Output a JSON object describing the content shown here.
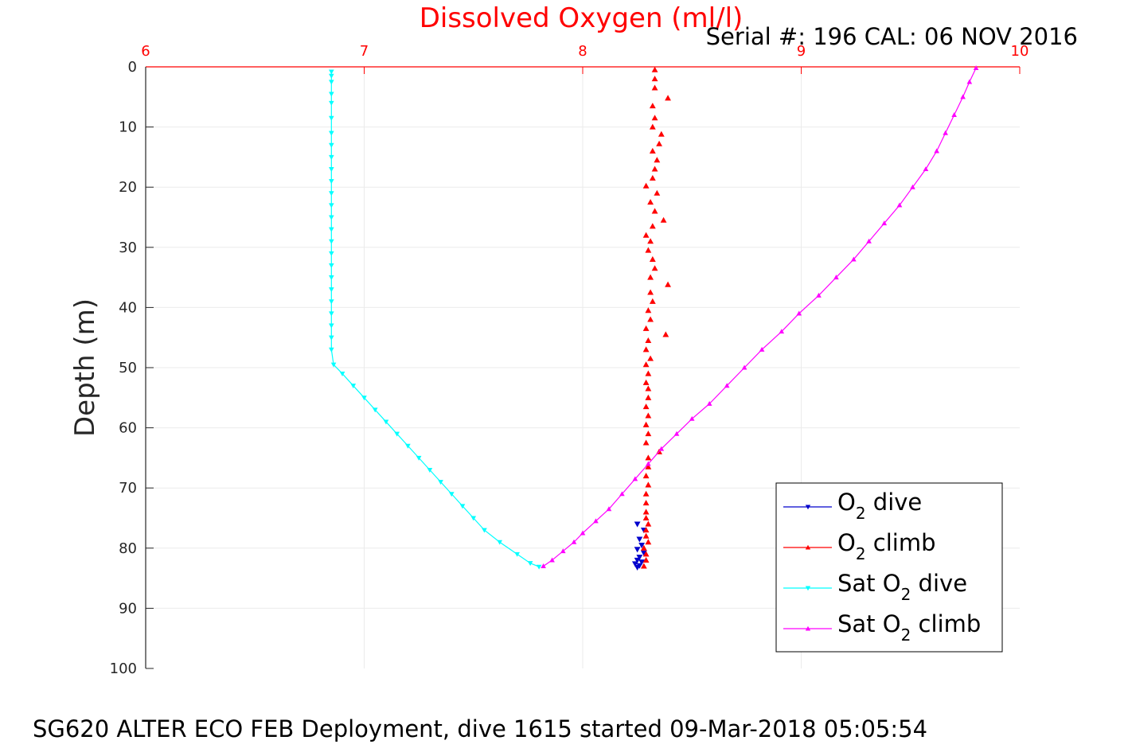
{
  "chart_data": {
    "type": "scatter",
    "title": "Dissolved Oxygen (ml/l)",
    "subtitle": "Serial #: 196  CAL: 06 NOV 2016",
    "footer": "SG620 ALTER ECO FEB Deployment, dive 1615 started 09-Mar-2018 05:05:54",
    "ylabel": "Depth (m)",
    "xlim": [
      6,
      10
    ],
    "ylim": [
      0,
      100
    ],
    "y_reversed": true,
    "x_axis_location": "top",
    "x_ticks": [
      "6",
      "7",
      "8",
      "9",
      "10"
    ],
    "y_ticks": [
      "0",
      "10",
      "20",
      "30",
      "40",
      "50",
      "60",
      "70",
      "80",
      "90",
      "100"
    ],
    "grid": true,
    "legend_position": "bottom-right",
    "colors": {
      "o2_dive": "#0000cc",
      "o2_climb": "#ff0000",
      "sat_dive": "#00ffff",
      "sat_climb": "#ff00ff",
      "axis_x": "#ff0000",
      "grid": "#ebebeb"
    },
    "series": [
      {
        "key": "o2_dive",
        "legend": {
          "pre": "O",
          "sub": "2",
          "post": " dive"
        },
        "marker": "triangle-down",
        "color": "#0000cc",
        "points": [
          [
            8.25,
            76.0
          ],
          [
            8.28,
            77.0
          ],
          [
            8.26,
            78.5
          ],
          [
            8.27,
            79.5
          ],
          [
            8.25,
            80.2
          ],
          [
            8.28,
            80.8
          ],
          [
            8.26,
            81.5
          ],
          [
            8.25,
            82.0
          ],
          [
            8.27,
            82.3
          ],
          [
            8.24,
            82.6
          ],
          [
            8.26,
            82.9
          ],
          [
            8.25,
            83.2
          ]
        ]
      },
      {
        "key": "o2_climb",
        "legend": {
          "pre": "O",
          "sub": "2",
          "post": " climb"
        },
        "marker": "triangle-up",
        "color": "#ff0000",
        "points": [
          [
            8.28,
            83.0
          ],
          [
            8.29,
            82.0
          ],
          [
            8.29,
            81.0
          ],
          [
            8.28,
            80.0
          ],
          [
            8.3,
            79.0
          ],
          [
            8.29,
            78.0
          ],
          [
            8.29,
            77.0
          ],
          [
            8.3,
            76.0
          ],
          [
            8.29,
            75.0
          ],
          [
            8.29,
            74.0
          ],
          [
            8.29,
            72.5
          ],
          [
            8.29,
            71.0
          ],
          [
            8.3,
            69.5
          ],
          [
            8.29,
            68.0
          ],
          [
            8.3,
            66.5
          ],
          [
            8.3,
            65.0
          ],
          [
            8.35,
            64.0
          ],
          [
            8.29,
            62.5
          ],
          [
            8.3,
            61.0
          ],
          [
            8.29,
            59.5
          ],
          [
            8.3,
            58.0
          ],
          [
            8.29,
            56.5
          ],
          [
            8.3,
            55.0
          ],
          [
            8.3,
            53.5
          ],
          [
            8.29,
            52.5
          ],
          [
            8.3,
            51.0
          ],
          [
            8.29,
            49.5
          ],
          [
            8.31,
            48.5
          ],
          [
            8.29,
            47.0
          ],
          [
            8.3,
            45.5
          ],
          [
            8.38,
            44.5
          ],
          [
            8.29,
            43.5
          ],
          [
            8.31,
            42.0
          ],
          [
            8.3,
            40.5
          ],
          [
            8.32,
            39.0
          ],
          [
            8.31,
            37.5
          ],
          [
            8.39,
            36.2
          ],
          [
            8.31,
            35.0
          ],
          [
            8.33,
            33.5
          ],
          [
            8.32,
            32.0
          ],
          [
            8.3,
            30.5
          ],
          [
            8.31,
            29.0
          ],
          [
            8.29,
            28.0
          ],
          [
            8.32,
            26.5
          ],
          [
            8.37,
            25.5
          ],
          [
            8.33,
            24.0
          ],
          [
            8.31,
            22.5
          ],
          [
            8.34,
            21.0
          ],
          [
            8.29,
            19.8
          ],
          [
            8.32,
            18.5
          ],
          [
            8.33,
            17.0
          ],
          [
            8.34,
            15.5
          ],
          [
            8.32,
            14.0
          ],
          [
            8.35,
            12.8
          ],
          [
            8.36,
            11.2
          ],
          [
            8.32,
            10.0
          ],
          [
            8.33,
            8.5
          ],
          [
            8.32,
            6.5
          ],
          [
            8.39,
            5.2
          ],
          [
            8.33,
            3.5
          ],
          [
            8.33,
            2.0
          ],
          [
            8.33,
            0.5
          ]
        ]
      },
      {
        "key": "sat_dive",
        "legend": {
          "pre": "Sat O",
          "sub": "2",
          "post": " dive"
        },
        "marker": "triangle-down",
        "color": "#00ffff",
        "points": [
          [
            6.85,
            0.8
          ],
          [
            6.85,
            1.5
          ],
          [
            6.85,
            2.5
          ],
          [
            6.85,
            4.5
          ],
          [
            6.85,
            6.0
          ],
          [
            6.85,
            8.5
          ],
          [
            6.85,
            11.0
          ],
          [
            6.85,
            13.0
          ],
          [
            6.85,
            15.0
          ],
          [
            6.85,
            17.0
          ],
          [
            6.85,
            19.0
          ],
          [
            6.85,
            21.0
          ],
          [
            6.85,
            23.0
          ],
          [
            6.85,
            25.0
          ],
          [
            6.85,
            27.0
          ],
          [
            6.85,
            29.0
          ],
          [
            6.85,
            31.0
          ],
          [
            6.85,
            33.0
          ],
          [
            6.85,
            35.0
          ],
          [
            6.85,
            37.0
          ],
          [
            6.85,
            39.0
          ],
          [
            6.85,
            41.0
          ],
          [
            6.85,
            43.0
          ],
          [
            6.85,
            45.0
          ],
          [
            6.85,
            47.0
          ],
          [
            6.86,
            49.5
          ],
          [
            6.9,
            51.0
          ],
          [
            6.95,
            53.0
          ],
          [
            7.0,
            55.0
          ],
          [
            7.05,
            57.0
          ],
          [
            7.1,
            59.0
          ],
          [
            7.15,
            61.0
          ],
          [
            7.2,
            63.0
          ],
          [
            7.25,
            65.0
          ],
          [
            7.3,
            67.0
          ],
          [
            7.35,
            69.0
          ],
          [
            7.4,
            71.0
          ],
          [
            7.45,
            73.0
          ],
          [
            7.5,
            75.0
          ],
          [
            7.55,
            77.0
          ],
          [
            7.62,
            79.0
          ],
          [
            7.7,
            81.0
          ],
          [
            7.76,
            82.5
          ],
          [
            7.8,
            83.1
          ]
        ]
      },
      {
        "key": "sat_climb",
        "legend": {
          "pre": "Sat O",
          "sub": "2",
          "post": " climb"
        },
        "marker": "triangle-up",
        "color": "#ff00ff",
        "points": [
          [
            7.82,
            83.0
          ],
          [
            7.86,
            82.0
          ],
          [
            7.91,
            80.5
          ],
          [
            7.96,
            79.0
          ],
          [
            8.0,
            77.5
          ],
          [
            8.06,
            75.5
          ],
          [
            8.12,
            73.5
          ],
          [
            8.18,
            71.0
          ],
          [
            8.24,
            68.5
          ],
          [
            8.3,
            66.0
          ],
          [
            8.36,
            63.5
          ],
          [
            8.43,
            61.0
          ],
          [
            8.5,
            58.5
          ],
          [
            8.58,
            56.0
          ],
          [
            8.66,
            53.0
          ],
          [
            8.74,
            50.0
          ],
          [
            8.82,
            47.0
          ],
          [
            8.91,
            44.0
          ],
          [
            8.99,
            41.0
          ],
          [
            9.08,
            38.0
          ],
          [
            9.16,
            35.0
          ],
          [
            9.24,
            32.0
          ],
          [
            9.31,
            29.0
          ],
          [
            9.38,
            26.0
          ],
          [
            9.45,
            23.0
          ],
          [
            9.51,
            20.0
          ],
          [
            9.57,
            17.0
          ],
          [
            9.62,
            14.0
          ],
          [
            9.66,
            11.0
          ],
          [
            9.7,
            8.0
          ],
          [
            9.74,
            5.0
          ],
          [
            9.77,
            2.5
          ],
          [
            9.8,
            0.2
          ]
        ]
      }
    ]
  }
}
